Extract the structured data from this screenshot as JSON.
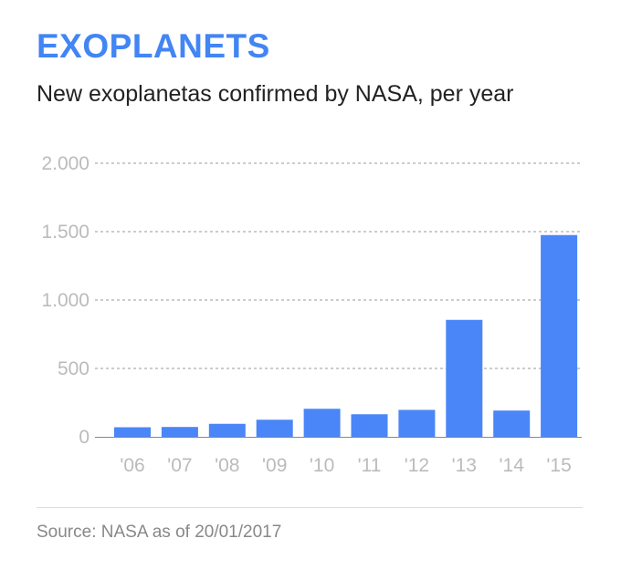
{
  "title": "EXOPLANETS",
  "subtitle": "New exoplanetas confirmed by NASA, per year",
  "source": "Source: NASA as of 20/01/2017",
  "colors": {
    "accent": "#4285f4",
    "bar": "#4a86f7",
    "gridline": "#999999",
    "tick_text": "#bbbbbb"
  },
  "chart_data": {
    "type": "bar",
    "title": "New exoplanetas confirmed by NASA, per year",
    "categories": [
      "'06",
      "'07",
      "'08",
      "'09",
      "'10",
      "'11",
      "'12",
      "'13",
      "'14",
      "'15"
    ],
    "values": [
      70,
      72,
      95,
      125,
      205,
      165,
      197,
      855,
      192,
      1475
    ],
    "ylim": [
      0,
      2000
    ],
    "yticks": [
      0,
      500,
      1000,
      1500,
      2000
    ],
    "ytick_labels": [
      "0",
      "500",
      "1.000",
      "1.500",
      "2.000"
    ],
    "xlabel": "",
    "ylabel": "",
    "grid": true
  }
}
